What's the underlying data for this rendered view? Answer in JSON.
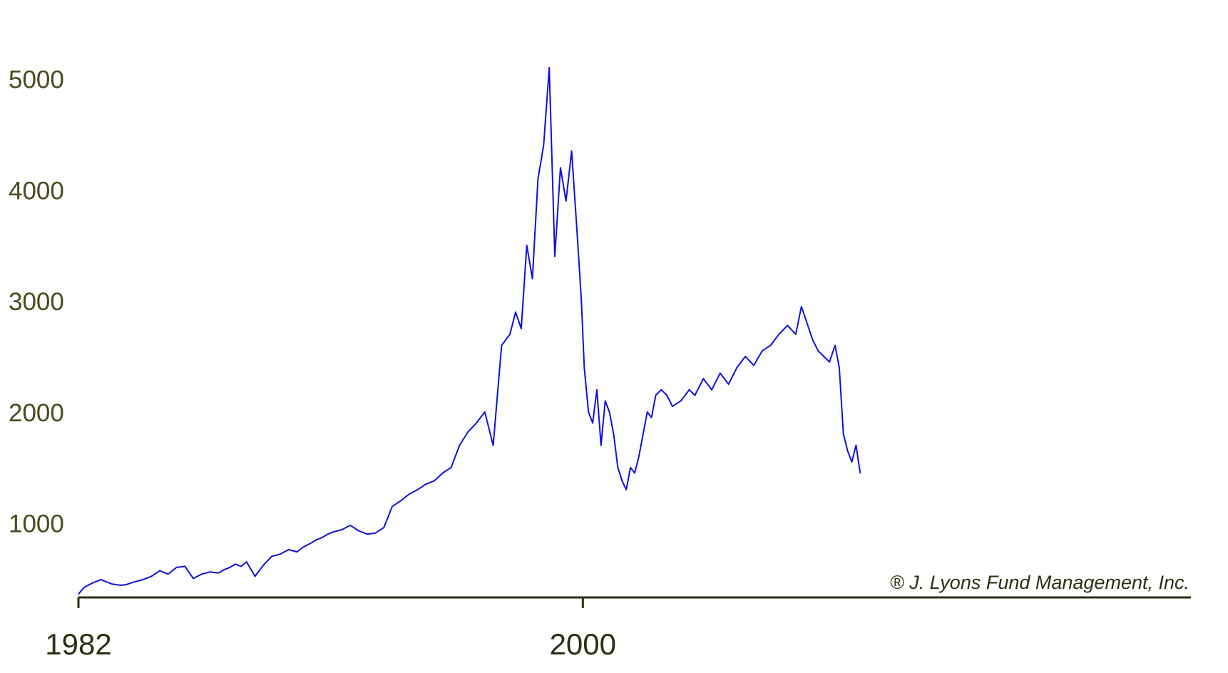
{
  "chart_data": {
    "type": "line",
    "title": "",
    "xlabel": "",
    "ylabel": "",
    "xlim": [
      1982,
      2021.7
    ],
    "ylim": [
      330,
      5100
    ],
    "x_ticks": [
      1982,
      2000
    ],
    "y_ticks": [
      1000,
      2000,
      3000,
      4000,
      5000
    ],
    "grid": false,
    "annotation": "® J. Lyons Fund Management, Inc.",
    "colors": {
      "line": "#1010dd",
      "axis": "#2e2e14",
      "ytick": "#4a4a1e"
    },
    "series": [
      {
        "x": [
          1982.0,
          1982.2,
          1982.5,
          1982.8,
          1983.0,
          1983.2,
          1983.5,
          1983.7,
          1984.0,
          1984.3,
          1984.6,
          1984.9,
          1985.2,
          1985.5,
          1985.8,
          1986.1,
          1986.4,
          1986.7,
          1987.0,
          1987.2,
          1987.4,
          1987.6,
          1987.8,
          1988.0,
          1988.3,
          1988.6,
          1988.9,
          1989.2,
          1989.5,
          1989.8,
          1990.0,
          1990.3,
          1990.5,
          1990.7,
          1990.9,
          1991.1,
          1991.4,
          1991.7,
          1992.0,
          1992.3,
          1992.6,
          1992.9,
          1993.2,
          1993.5,
          1993.8,
          1994.1,
          1994.4,
          1994.7,
          1995.0,
          1995.3,
          1995.6,
          1995.9,
          1996.2,
          1996.5,
          1996.8,
          1997.1,
          1997.4,
          1997.6,
          1997.8,
          1998.0,
          1998.2,
          1998.4,
          1998.6,
          1998.8,
          1999.0,
          1999.2,
          1999.4,
          1999.6,
          1999.8,
          1999.95,
          2000.05,
          2000.2,
          2000.35,
          2000.5,
          2000.65,
          2000.8,
          2000.95,
          2001.1,
          2001.25,
          2001.4,
          2001.55,
          2001.7,
          2001.85,
          2002.0,
          2002.15,
          2002.3,
          2002.45,
          2002.6,
          2002.8,
          2003.0,
          2003.2,
          2003.5,
          2003.8,
          2004.0,
          2004.3,
          2004.6,
          2004.9,
          2005.2,
          2005.5,
          2005.8,
          2006.1,
          2006.4,
          2006.7,
          2007.0,
          2007.3,
          2007.6,
          2007.8,
          2008.0,
          2008.2,
          2008.4,
          2008.6,
          2008.8,
          2009.0,
          2009.15,
          2009.3,
          2009.45,
          2009.6,
          2009.75,
          2009.9
        ],
        "values": [
          360,
          420,
          460,
          490,
          470,
          450,
          440,
          445,
          470,
          490,
          520,
          570,
          540,
          600,
          610,
          500,
          540,
          560,
          550,
          580,
          600,
          630,
          610,
          650,
          520,
          620,
          700,
          720,
          760,
          740,
          780,
          820,
          850,
          870,
          900,
          920,
          940,
          980,
          930,
          900,
          910,
          960,
          1150,
          1200,
          1260,
          1300,
          1350,
          1380,
          1450,
          1500,
          1700,
          1820,
          1900,
          2000,
          1700,
          2600,
          2700,
          2900,
          2750,
          3500,
          3200,
          4100,
          4400,
          5100,
          3400,
          4200,
          3900,
          4350,
          3600,
          3000,
          2400,
          2000,
          1900,
          2200,
          1700,
          2100,
          2000,
          1800,
          1500,
          1380,
          1300,
          1500,
          1450,
          1600,
          1800,
          2000,
          1950,
          2150,
          2200,
          2150,
          2050,
          2100,
          2200,
          2150,
          2300,
          2200,
          2350,
          2250,
          2400,
          2500,
          2420,
          2550,
          2600,
          2700,
          2780,
          2700,
          2950,
          2800,
          2650,
          2550,
          2500,
          2450,
          2600,
          2400,
          1800,
          1650,
          1550,
          1700,
          1450
        ]
      }
    ]
  }
}
